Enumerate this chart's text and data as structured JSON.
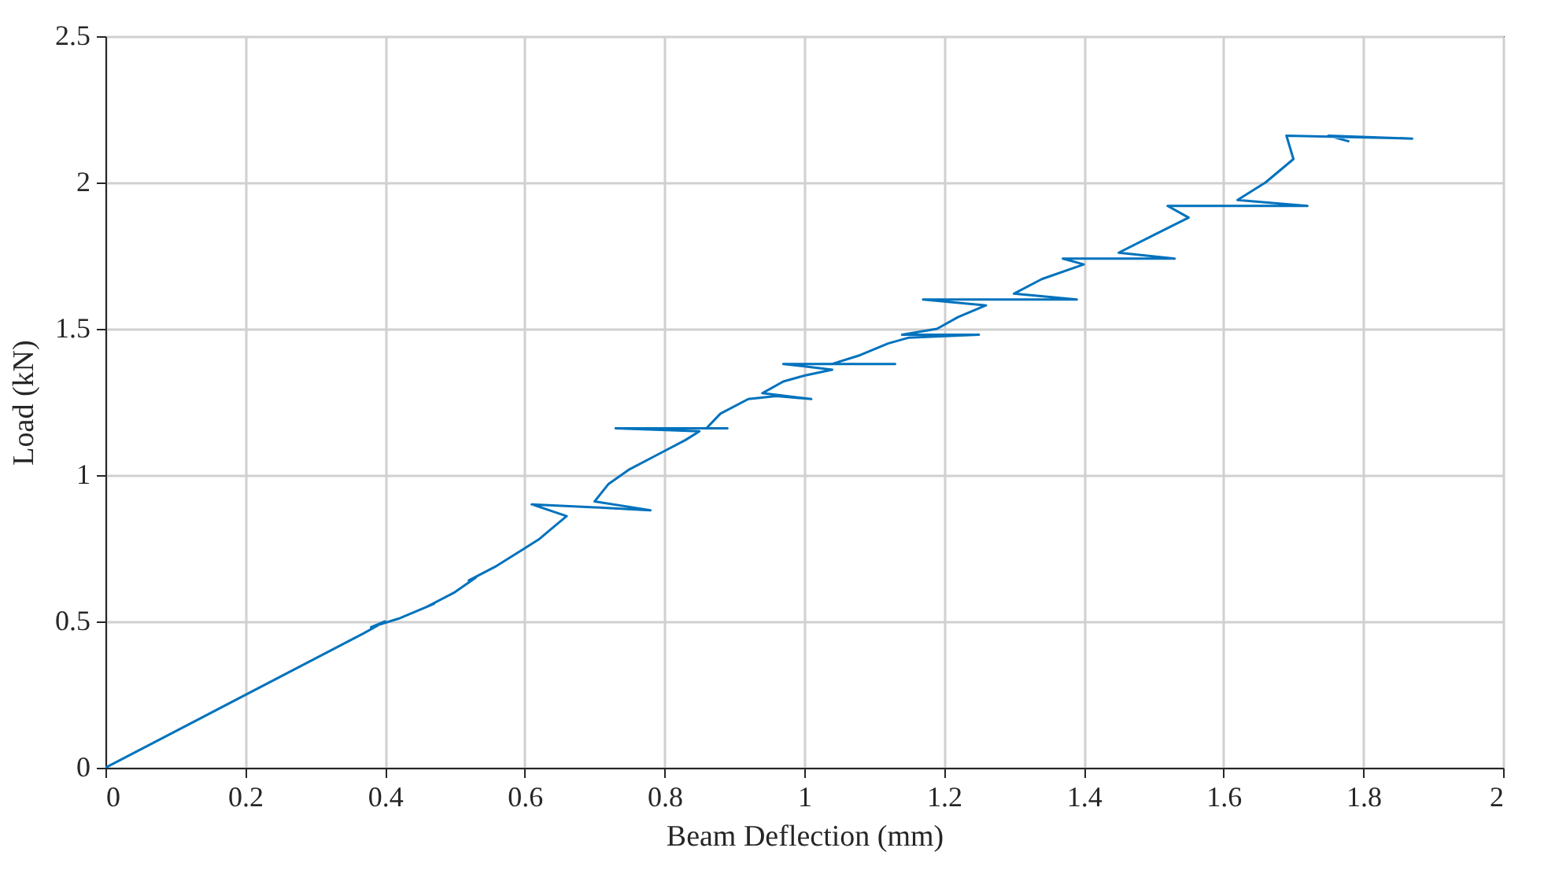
{
  "chart_data": {
    "type": "line",
    "xlabel": "Beam Deflection (mm)",
    "ylabel": "Load (kN)",
    "x": [
      0,
      0.37,
      0.4,
      0.38,
      0.42,
      0.44,
      0.47,
      0.46,
      0.5,
      0.53,
      0.52,
      0.56,
      0.6,
      0.62,
      0.64,
      0.66,
      0.61,
      0.7,
      0.78,
      0.7,
      0.72,
      0.75,
      0.79,
      0.83,
      0.85,
      0.73,
      0.89,
      0.86,
      0.88,
      0.92,
      0.96,
      1.01,
      0.94,
      0.97,
      1.0,
      1.04,
      0.97,
      1.13,
      1.04,
      1.08,
      1.12,
      1.15,
      1.25,
      1.14,
      1.19,
      1.22,
      1.26,
      1.17,
      1.39,
      1.3,
      1.34,
      1.4,
      1.37,
      1.53,
      1.45,
      1.5,
      1.55,
      1.52,
      1.72,
      1.62,
      1.66,
      1.7,
      1.69,
      1.87,
      1.75,
      1.78
    ],
    "series": [
      {
        "color": "#0072bd",
        "values": [
          0,
          0.46,
          0.5,
          0.48,
          0.51,
          0.53,
          0.56,
          0.55,
          0.6,
          0.65,
          0.64,
          0.69,
          0.75,
          0.78,
          0.82,
          0.86,
          0.9,
          0.89,
          0.88,
          0.91,
          0.97,
          1.02,
          1.07,
          1.12,
          1.15,
          1.16,
          1.16,
          1.16,
          1.21,
          1.26,
          1.27,
          1.26,
          1.28,
          1.32,
          1.34,
          1.36,
          1.38,
          1.38,
          1.38,
          1.41,
          1.45,
          1.47,
          1.48,
          1.48,
          1.5,
          1.54,
          1.58,
          1.6,
          1.6,
          1.62,
          1.67,
          1.72,
          1.74,
          1.74,
          1.76,
          1.82,
          1.88,
          1.92,
          1.92,
          1.94,
          2.0,
          2.08,
          2.16,
          2.15,
          2.16,
          2.14
        ]
      }
    ],
    "xlim": [
      0,
      2
    ],
    "xticks": [
      0,
      0.2,
      0.4,
      0.6,
      0.8,
      1,
      1.2,
      1.4,
      1.6,
      1.8,
      2
    ],
    "ylim": [
      0,
      2.5
    ],
    "yticks": [
      0,
      0.5,
      1,
      1.5,
      2,
      2.5
    ],
    "grid": true,
    "marker": "none",
    "line_style": "solid"
  }
}
